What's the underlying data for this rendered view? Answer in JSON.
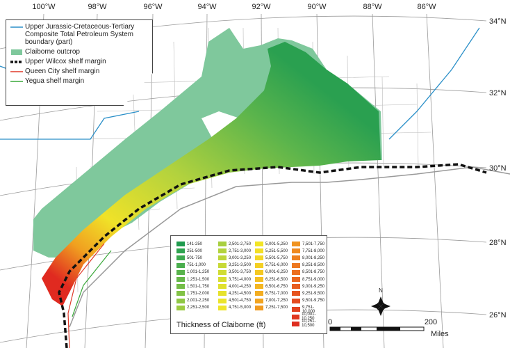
{
  "graticule": {
    "longitudes": [
      "100°W",
      "98°W",
      "96°W",
      "94°W",
      "92°W",
      "90°W",
      "88°W",
      "86°W"
    ],
    "latitudes": [
      "34°N",
      "32°N",
      "30°N",
      "28°N",
      "26°N"
    ]
  },
  "legend": {
    "items": [
      {
        "label": "Upper Jurassic-Cretaceous-Tertiary Composite Total Petroleum System boundary (part)",
        "symbol": "line",
        "color": "#2a8fc8"
      },
      {
        "label": "Claiborne outcrop",
        "symbol": "patch",
        "color": "#7fc89c"
      },
      {
        "label": "Upper Wilcox shelf margin",
        "symbol": "dashed",
        "color": "#111111"
      },
      {
        "label": "Queen City shelf margin",
        "symbol": "line",
        "color": "#e03a2a"
      },
      {
        "label": "Yegua shelf margin",
        "symbol": "line",
        "color": "#3aa83a"
      }
    ]
  },
  "thickness_legend": {
    "title": "Thickness of Claiborne (ft)",
    "classes": [
      {
        "label": "141-250",
        "color": "#1f9a4e"
      },
      {
        "label": "251-500",
        "color": "#2ea34f"
      },
      {
        "label": "501-750",
        "color": "#3ca94f"
      },
      {
        "label": "751-1,000",
        "color": "#4aae4e"
      },
      {
        "label": "1,001-1,250",
        "color": "#58b34c"
      },
      {
        "label": "1,251-1,500",
        "color": "#66b84a"
      },
      {
        "label": "1,501-1,750",
        "color": "#74bd48"
      },
      {
        "label": "1,751-2,000",
        "color": "#82c246"
      },
      {
        "label": "2,001-2,250",
        "color": "#8fc744"
      },
      {
        "label": "2,251-2,500",
        "color": "#9ccb42"
      },
      {
        "label": "2,501-2,750",
        "color": "#a8cf40"
      },
      {
        "label": "2,751-3,000",
        "color": "#b3d33d"
      },
      {
        "label": "3,001-3,250",
        "color": "#bdd63a"
      },
      {
        "label": "3,251-3,500",
        "color": "#c7d937"
      },
      {
        "label": "3,501-3,750",
        "color": "#d0dc34"
      },
      {
        "label": "3,751-4,000",
        "color": "#d8de31"
      },
      {
        "label": "4,001-4,250",
        "color": "#e0e12e"
      },
      {
        "label": "4,251-4,500",
        "color": "#e6e22c"
      },
      {
        "label": "4,501-4,750",
        "color": "#ebe42a"
      },
      {
        "label": "4,751-5,000",
        "color": "#efe528"
      },
      {
        "label": "5,001-5,250",
        "color": "#f2e526"
      },
      {
        "label": "5,251-5,500",
        "color": "#f3df25"
      },
      {
        "label": "5,501-5,750",
        "color": "#f4d824"
      },
      {
        "label": "5,751-6,000",
        "color": "#f4d023"
      },
      {
        "label": "6,001-6,250",
        "color": "#f4c822"
      },
      {
        "label": "6,251-6,500",
        "color": "#f4bf22"
      },
      {
        "label": "6,501-6,750",
        "color": "#f4b621"
      },
      {
        "label": "6,751-7,000",
        "color": "#f3ad21"
      },
      {
        "label": "7,001-7,250",
        "color": "#f2a420"
      },
      {
        "label": "7,251-7,500",
        "color": "#f19b20"
      },
      {
        "label": "7,501-7,750",
        "color": "#f09320"
      },
      {
        "label": "7,751-8,000",
        "color": "#ef8a20"
      },
      {
        "label": "8,001-8,250",
        "color": "#ee8120"
      },
      {
        "label": "8,251-8,500",
        "color": "#ed7820"
      },
      {
        "label": "8,501-8,750",
        "color": "#ec6f20"
      },
      {
        "label": "8,751-9,000",
        "color": "#ea6620"
      },
      {
        "label": "9,001-9,250",
        "color": "#e85d20"
      },
      {
        "label": "9,251-9,500",
        "color": "#e65420"
      },
      {
        "label": "9,501-9,750",
        "color": "#e44b20"
      },
      {
        "label": "9,751-10,000",
        "color": "#e24220"
      },
      {
        "label": "10,001-10,250",
        "color": "#e03820"
      },
      {
        "label": "10,251-10,500",
        "color": "#de2e20"
      }
    ]
  },
  "north_arrow": {
    "label": "N"
  },
  "scale_bar": {
    "start": "0",
    "end": "200",
    "unit": "Miles"
  }
}
